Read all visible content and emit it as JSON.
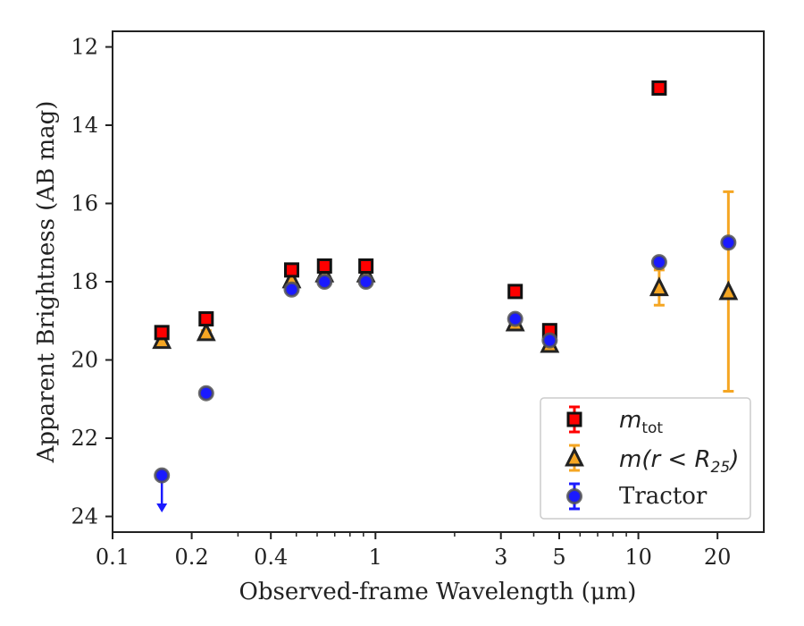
{
  "chart_data": {
    "type": "scatter",
    "xlabel": "Observed-frame Wavelength (μm)",
    "ylabel": "Apparent Brightness (AB mag)",
    "xscale": "log",
    "xlim": [
      0.1,
      30
    ],
    "ylim": [
      24.4,
      11.6
    ],
    "y_inverted": true,
    "x_ticks": [
      0.1,
      0.2,
      0.4,
      1,
      3,
      5,
      10,
      20
    ],
    "x_tick_labels": [
      "0.1",
      "0.2",
      "0.4",
      "1",
      "3",
      "5",
      "10",
      "20"
    ],
    "y_ticks": [
      12,
      14,
      16,
      18,
      20,
      22,
      24
    ],
    "y_tick_labels": [
      "12",
      "14",
      "16",
      "18",
      "20",
      "22",
      "24"
    ],
    "grid": false,
    "legend_position": "bottom-right",
    "series": [
      {
        "name": "m_tot",
        "legend_label_main": "m",
        "legend_label_sub": "tot",
        "marker": "square",
        "color": "#ff0000",
        "edge_color": "#111111",
        "points": [
          {
            "x": 0.154,
            "y": 19.3,
            "err": 0.08
          },
          {
            "x": 0.227,
            "y": 18.95,
            "err": 0.06
          },
          {
            "x": 0.48,
            "y": 17.7,
            "err": 0.03
          },
          {
            "x": 0.64,
            "y": 17.6,
            "err": 0.03
          },
          {
            "x": 0.92,
            "y": 17.6,
            "err": 0.03
          },
          {
            "x": 3.4,
            "y": 18.25,
            "err": 0.03
          },
          {
            "x": 4.6,
            "y": 19.25,
            "err": 0.03
          },
          {
            "x": 12.0,
            "y": 13.05,
            "err": 0.03
          }
        ]
      },
      {
        "name": "m(r < R_25)",
        "legend_label_main": "m(r < R",
        "legend_label_sub": "25",
        "legend_label_tail": ")",
        "marker": "triangle",
        "color": "#f5a623",
        "edge_color": "#222222",
        "points": [
          {
            "x": 0.154,
            "y": 19.5,
            "err": 0.05
          },
          {
            "x": 0.227,
            "y": 19.3,
            "err": 0.05
          },
          {
            "x": 0.48,
            "y": 17.95,
            "err": 0.03
          },
          {
            "x": 0.64,
            "y": 17.8,
            "err": 0.03
          },
          {
            "x": 0.92,
            "y": 17.8,
            "err": 0.03
          },
          {
            "x": 3.4,
            "y": 19.05,
            "err": 0.03
          },
          {
            "x": 4.6,
            "y": 19.6,
            "err": 0.05
          },
          {
            "x": 12.0,
            "y": 18.15,
            "err": 0.45
          },
          {
            "x": 22.0,
            "y": 18.25,
            "err": 2.55
          }
        ]
      },
      {
        "name": "Tractor",
        "marker": "circle",
        "color": "#1a1aff",
        "edge_color": "#555555",
        "points": [
          {
            "x": 0.154,
            "y": 22.95,
            "upper_limit": true,
            "arrow_to": 23.85
          },
          {
            "x": 0.227,
            "y": 20.85,
            "err": 0.05
          },
          {
            "x": 0.48,
            "y": 18.2,
            "err": 0.05
          },
          {
            "x": 0.64,
            "y": 18.0,
            "err": 0.03
          },
          {
            "x": 0.92,
            "y": 18.0,
            "err": 0.03
          },
          {
            "x": 3.4,
            "y": 18.95,
            "err": 0.03
          },
          {
            "x": 4.6,
            "y": 19.5,
            "err": 0.05
          },
          {
            "x": 12.0,
            "y": 17.5,
            "err": 0.03
          },
          {
            "x": 22.0,
            "y": 17.0,
            "err": 0.05
          }
        ]
      }
    ]
  }
}
